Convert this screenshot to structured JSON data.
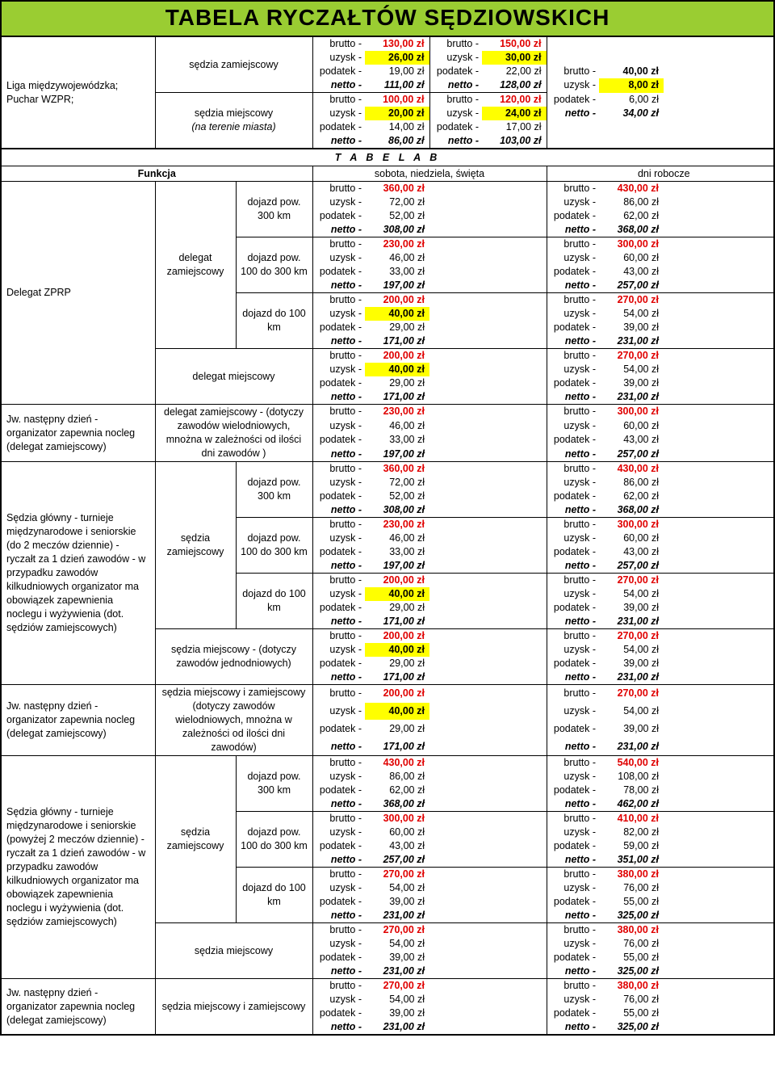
{
  "title": "TABELA RYCZAŁTÓW SĘDZIOWSKICH",
  "tabB_header": "T A B E L A      B",
  "header_funkcja": "Funkcja",
  "header_weekend": "sobota, niedziela, święta",
  "header_weekday": "dni robocze",
  "labels": {
    "brutto": "brutto -",
    "uzysk": "uzysk -",
    "podatek": "podatek -",
    "netto": "netto -"
  },
  "liga": {
    "desc": "Liga międzywojewódzka; Puchar WZPR;",
    "type1": "sędzia zamiejscowy",
    "type2a": "sędzia miejscowy",
    "type2b": "(na terenie miasta)",
    "r1c1": {
      "b": "130,00 zł",
      "u": "26,00 zł",
      "p": "19,00 zł",
      "n": "111,00 zł"
    },
    "r1c2": {
      "b": "150,00 zł",
      "u": "30,00 zł",
      "p": "22,00 zł",
      "n": "128,00 zł"
    },
    "r2c1": {
      "b": "100,00 zł",
      "u": "20,00 zł",
      "p": "14,00 zł",
      "n": "86,00 zł"
    },
    "r2c2": {
      "b": "120,00 zł",
      "u": "24,00 zł",
      "p": "17,00 zł",
      "n": "103,00 zł"
    },
    "c3": {
      "b": "40,00 zł",
      "u": "8,00 zł",
      "p": "6,00 zł",
      "n": "34,00 zł"
    }
  },
  "dojazd300": "dojazd pow. 300 km",
  "dojazd100_300": "dojazd pow. 100 do 300 km",
  "dojazd100": "dojazd do 100 km",
  "delegat": {
    "desc": "Delegat ZPRP",
    "type_zam": "delegat zamiejscowy",
    "type_mie": "delegat miejscowy",
    "next_desc": "Jw. następny dzień - organizator zapewnia nocleg (delegat zamiejscowy)",
    "next_type": "delegat zamiejscowy - (dotyczy zawodów wielodniowych, mnożna w zależności od ilości dni zawodów )",
    "r300": {
      "w": {
        "b": "360,00 zł",
        "u": "72,00 zł",
        "p": "52,00 zł",
        "n": "308,00 zł"
      },
      "d": {
        "b": "430,00 zł",
        "u": "86,00 zł",
        "p": "62,00 zł",
        "n": "368,00 zł"
      }
    },
    "r100_300": {
      "w": {
        "b": "230,00 zł",
        "u": "46,00 zł",
        "p": "33,00 zł",
        "n": "197,00 zł"
      },
      "d": {
        "b": "300,00 zł",
        "u": "60,00 zł",
        "p": "43,00 zł",
        "n": "257,00 zł"
      }
    },
    "r100": {
      "w": {
        "b": "200,00 zł",
        "u": "40,00 zł",
        "p": "29,00 zł",
        "n": "171,00 zł"
      },
      "d": {
        "b": "270,00 zł",
        "u": "54,00 zł",
        "p": "39,00 zł",
        "n": "231,00 zł"
      }
    },
    "r_mie": {
      "w": {
        "b": "200,00 zł",
        "u": "40,00 zł",
        "p": "29,00 zł",
        "n": "171,00 zł"
      },
      "d": {
        "b": "270,00 zł",
        "u": "54,00 zł",
        "p": "39,00 zł",
        "n": "231,00 zł"
      }
    },
    "r_next": {
      "w": {
        "b": "230,00 zł",
        "u": "46,00 zł",
        "p": "33,00 zł",
        "n": "197,00 zł"
      },
      "d": {
        "b": "300,00 zł",
        "u": "60,00 zł",
        "p": "43,00 zł",
        "n": "257,00 zł"
      }
    }
  },
  "sedzia2": {
    "desc": "Sędzia główny - turnieje międzynarodowe i seniorskie (do 2 meczów dziennie) - ryczałt za 1 dzień zawodów - w przypadku zawodów kilkudniowych organizator ma obowiązek zapewnienia noclegu i wyżywienia (dot. sędziów zamiejscowych)",
    "type_zam": "sędzia zamiejscowy",
    "type_mie": "sędzia miejscowy - (dotyczy zawodów jednodniowych)",
    "next_desc": "Jw. następny dzień - organizator zapewnia nocleg (delegat zamiejscowy)",
    "next_type": "sędzia miejscowy i zamiejscowy (dotyczy zawodów wielodniowych, mnożna w zależności od ilości dni zawodów)",
    "r300": {
      "w": {
        "b": "360,00 zł",
        "u": "72,00 zł",
        "p": "52,00 zł",
        "n": "308,00 zł"
      },
      "d": {
        "b": "430,00 zł",
        "u": "86,00 zł",
        "p": "62,00 zł",
        "n": "368,00 zł"
      }
    },
    "r100_300": {
      "w": {
        "b": "230,00 zł",
        "u": "46,00 zł",
        "p": "33,00 zł",
        "n": "197,00 zł"
      },
      "d": {
        "b": "300,00 zł",
        "u": "60,00 zł",
        "p": "43,00 zł",
        "n": "257,00 zł"
      }
    },
    "r100": {
      "w": {
        "b": "200,00 zł",
        "u": "40,00 zł",
        "p": "29,00 zł",
        "n": "171,00 zł"
      },
      "d": {
        "b": "270,00 zł",
        "u": "54,00 zł",
        "p": "39,00 zł",
        "n": "231,00 zł"
      }
    },
    "r_mie": {
      "w": {
        "b": "200,00 zł",
        "u": "40,00 zł",
        "p": "29,00 zł",
        "n": "171,00 zł"
      },
      "d": {
        "b": "270,00 zł",
        "u": "54,00 zł",
        "p": "39,00 zł",
        "n": "231,00 zł"
      }
    },
    "r_next": {
      "w": {
        "b": "200,00 zł",
        "u": "40,00 zł",
        "p": "29,00 zł",
        "n": "171,00 zł"
      },
      "d": {
        "b": "270,00 zł",
        "u": "54,00 zł",
        "p": "39,00 zł",
        "n": "231,00 zł"
      }
    }
  },
  "sedzia3": {
    "desc": "Sędzia główny - turnieje międzynarodowe i seniorskie (powyżej 2 meczów dziennie) - ryczałt za 1 dzień zawodów - w przypadku zawodów kilkudniowych organizator ma obowiązek zapewnienia noclegu i wyżywienia (dot. sędziów zamiejscowych)",
    "type_zam": "sędzia zamiejscowy",
    "type_mie": "sędzia miejscowy",
    "next_desc": "Jw. następny dzień - organizator zapewnia nocleg (delegat zamiejscowy)",
    "next_type": "sędzia miejscowy i zamiejscowy",
    "r300": {
      "w": {
        "b": "430,00 zł",
        "u": "86,00 zł",
        "p": "62,00 zł",
        "n": "368,00 zł"
      },
      "d": {
        "b": "540,00 zł",
        "u": "108,00 zł",
        "p": "78,00 zł",
        "n": "462,00 zł"
      }
    },
    "r100_300": {
      "w": {
        "b": "300,00 zł",
        "u": "60,00 zł",
        "p": "43,00 zł",
        "n": "257,00 zł"
      },
      "d": {
        "b": "410,00 zł",
        "u": "82,00 zł",
        "p": "59,00 zł",
        "n": "351,00 zł"
      }
    },
    "r100": {
      "w": {
        "b": "270,00 zł",
        "u": "54,00 zł",
        "p": "39,00 zł",
        "n": "231,00 zł"
      },
      "d": {
        "b": "380,00 zł",
        "u": "76,00 zł",
        "p": "55,00 zł",
        "n": "325,00 zł"
      }
    },
    "r_mie": {
      "w": {
        "b": "270,00 zł",
        "u": "54,00 zł",
        "p": "39,00 zł",
        "n": "231,00 zł"
      },
      "d": {
        "b": "380,00 zł",
        "u": "76,00 zł",
        "p": "55,00 zł",
        "n": "325,00 zł"
      }
    },
    "r_next": {
      "w": {
        "b": "270,00 zł",
        "u": "54,00 zł",
        "p": "39,00 zł",
        "n": "231,00 zł"
      },
      "d": {
        "b": "380,00 zł",
        "u": "76,00 zł",
        "p": "55,00 zł",
        "n": "325,00 zł"
      }
    }
  },
  "styles": {
    "title_bg": "#9acd32",
    "highlight_bg": "#ffff00",
    "brutto_color": "#e00000",
    "uzysk_highlight_values": [
      "26,00 zł",
      "20,00 zł",
      "24,00 zł",
      "30,00 zł",
      "8,00 zł",
      "40,00 zł"
    ]
  }
}
